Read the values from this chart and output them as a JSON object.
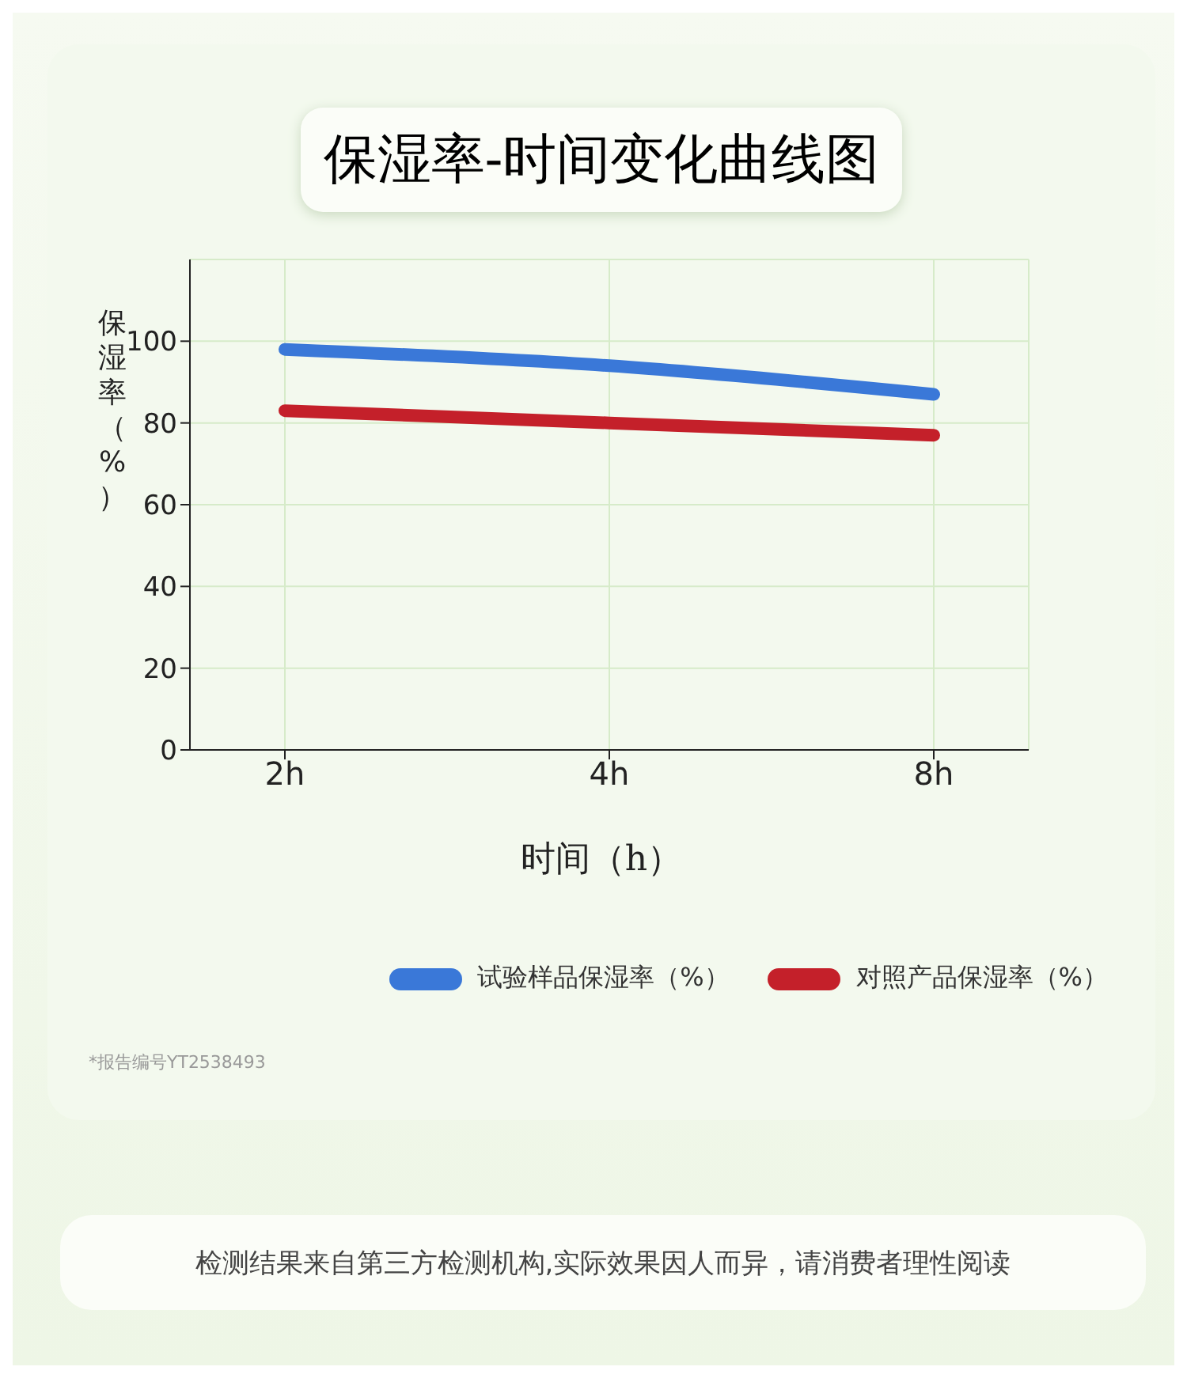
{
  "chart_data": {
    "type": "line",
    "title": "保湿率-时间变化曲线图",
    "xlabel": "时间（h）",
    "ylabel": "保湿率（%）",
    "categories": [
      "2h",
      "4h",
      "8h"
    ],
    "series": [
      {
        "name": "试验样品保湿率（%）",
        "color": "#3a78d8",
        "values": [
          98,
          94,
          87
        ]
      },
      {
        "name": "对照产品保湿率（%）",
        "color": "#c4202a",
        "values": [
          83,
          80,
          77
        ]
      }
    ],
    "ylim": [
      0,
      120
    ],
    "yticks": [
      0,
      20,
      40,
      60,
      80,
      100
    ],
    "grid": true,
    "legend": "bottom right",
    "marker": "none",
    "line_style": "solid",
    "annotations": [
      "*报告编号YT2538493",
      "检测结果来自第三方检测机构,实际效果因人而异，请消费者理性阅读"
    ]
  }
}
